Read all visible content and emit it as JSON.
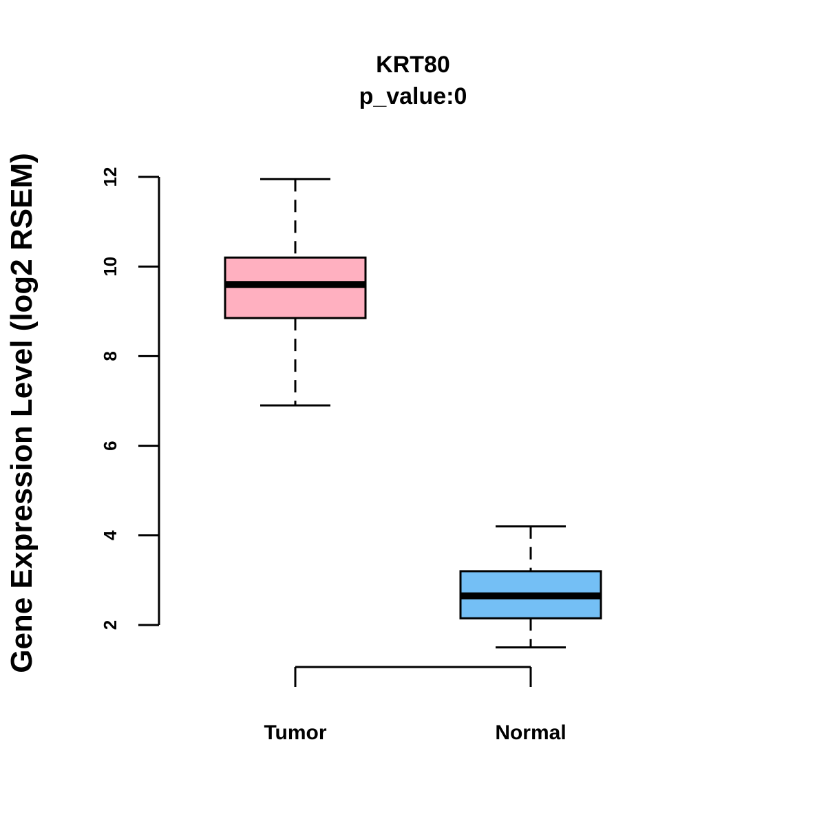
{
  "chart_data": {
    "type": "boxplot",
    "title": "KRT80",
    "subtitle": "p_value:0",
    "xlabel": "",
    "ylabel": "Gene Expression Level (log2 RSEM)",
    "ylim": [
      2,
      12
    ],
    "yticks": [
      2,
      4,
      6,
      8,
      10,
      12
    ],
    "categories": [
      "Tumor",
      "Normal"
    ],
    "series": [
      {
        "name": "Tumor",
        "color": "#FFB0C0",
        "whisker_low": 6.9,
        "q1": 8.85,
        "median": 9.6,
        "q3": 10.2,
        "whisker_high": 11.95
      },
      {
        "name": "Normal",
        "color": "#74BFF5",
        "whisker_low": 1.5,
        "q1": 2.15,
        "median": 2.65,
        "q3": 3.2,
        "whisker_high": 4.2
      }
    ],
    "bracket": true,
    "grid": false
  }
}
